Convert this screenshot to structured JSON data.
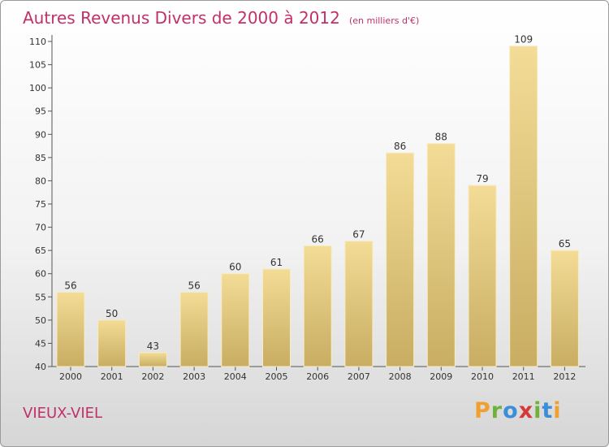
{
  "chart_data": {
    "type": "bar",
    "title": "Autres Revenus Divers de 2000 à 2012",
    "subtitle": "(en milliers d'€)",
    "categories": [
      "2000",
      "2001",
      "2002",
      "2003",
      "2004",
      "2005",
      "2006",
      "2007",
      "2008",
      "2009",
      "2010",
      "2011",
      "2012"
    ],
    "values": [
      56,
      50,
      43,
      56,
      60,
      61,
      66,
      67,
      86,
      88,
      79,
      109,
      65
    ],
    "ylim": [
      40,
      110
    ],
    "yticks": [
      40,
      45,
      50,
      55,
      60,
      65,
      70,
      75,
      80,
      85,
      90,
      95,
      100,
      105,
      110
    ],
    "grid": false,
    "bar_color_top": "#f3dc96",
    "bar_color_bottom": "#c8ad62"
  },
  "place_name": "VIEUX-VIEL",
  "logo": {
    "text": "Proxiti",
    "letter_colors": [
      "#f0a030",
      "#6fb23b",
      "#3a8fd8",
      "#d43a3a",
      "#6fb23b",
      "#3a8fd8",
      "#f0a030"
    ]
  },
  "colors": {
    "accent": "#c0306a",
    "axis": "#555555",
    "label": "#333333"
  }
}
